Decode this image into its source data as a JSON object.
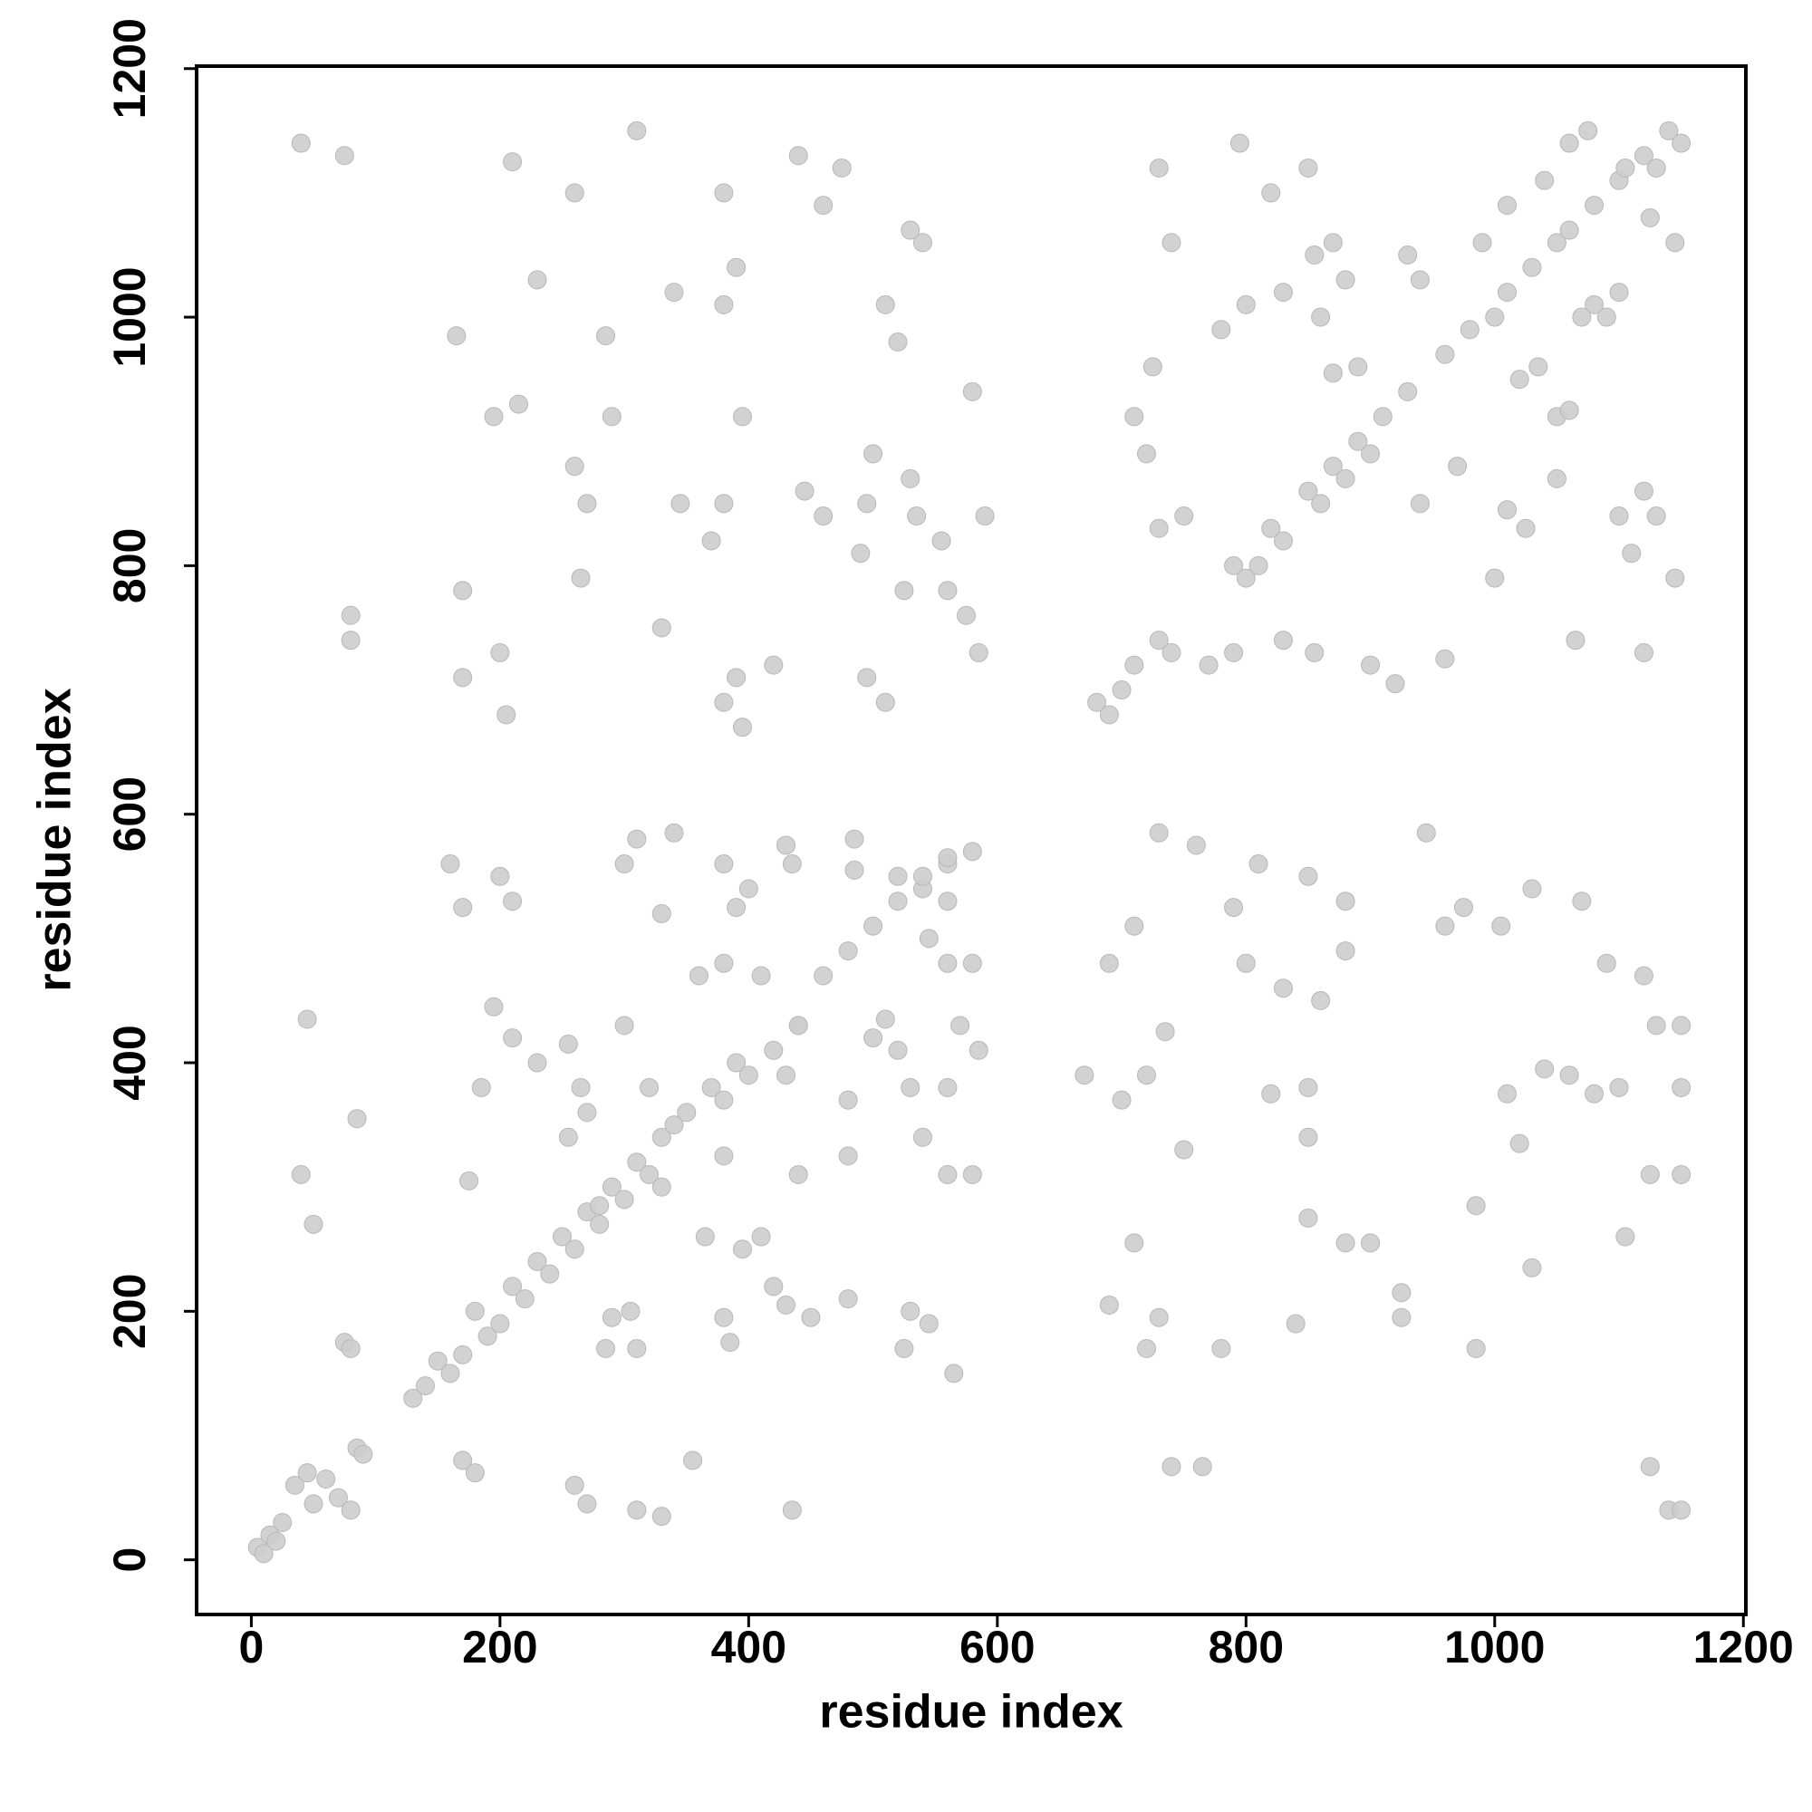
{
  "chart_data": {
    "type": "scatter",
    "xlabel": "residue index",
    "ylabel": "residue index",
    "color": "#cdcdcd",
    "xlim": [
      -44,
      1202
    ],
    "ylim": [
      -44,
      1202
    ],
    "xticks": [
      0,
      200,
      400,
      600,
      800,
      1000,
      1200
    ],
    "yticks": [
      0,
      200,
      400,
      600,
      800,
      1000,
      1200
    ],
    "grid": false,
    "x": [
      5,
      10,
      15,
      20,
      25,
      35,
      45,
      50,
      60,
      70,
      80,
      85,
      90,
      130,
      140,
      150,
      160,
      170,
      180,
      190,
      200,
      210,
      220,
      230,
      240,
      250,
      260,
      270,
      280,
      290,
      300,
      310,
      320,
      330,
      350,
      370,
      380,
      390,
      400,
      420,
      440,
      460,
      480,
      500,
      520,
      540,
      560,
      680,
      690,
      700,
      710,
      730,
      740,
      790,
      800,
      810,
      820,
      830,
      850,
      860,
      870,
      880,
      890,
      900,
      910,
      930,
      960,
      980,
      1000,
      1010,
      1030,
      1050,
      1060,
      1080,
      1100,
      1120,
      1130,
      1140,
      1150,
      40,
      75,
      310,
      440,
      380,
      390,
      340,
      260,
      210,
      230,
      475,
      170,
      170,
      200,
      205,
      195,
      215,
      260,
      270,
      265,
      345,
      370,
      380,
      390,
      380,
      395,
      395,
      445,
      460,
      490,
      495,
      530,
      535,
      555,
      560,
      575,
      585,
      580,
      520,
      510,
      540,
      530,
      460,
      500,
      380,
      80,
      80,
      420,
      495,
      510,
      330,
      290,
      165,
      285,
      525,
      590,
      795,
      820,
      850,
      1075,
      940,
      930,
      1010,
      1080,
      1100,
      990,
      770,
      790,
      830,
      855,
      870,
      890,
      860,
      830,
      855,
      780,
      800,
      730,
      740,
      730,
      750,
      725,
      710,
      720,
      900,
      920,
      960,
      1025,
      1010,
      1035,
      1050,
      1060,
      1050,
      1100,
      1110,
      1120,
      1130,
      1145,
      1065,
      1120,
      940,
      970,
      1000,
      1020,
      1070,
      1090,
      1105,
      1145,
      1125,
      1060,
      880,
      870,
      1040,
      730,
      760,
      790,
      810,
      850,
      880,
      945,
      975,
      1030,
      1070,
      1090,
      1120,
      1130,
      1150,
      1040,
      1060,
      1080,
      1100,
      1010,
      1020,
      880,
      900,
      925,
      925,
      850,
      820,
      850,
      850,
      700,
      670,
      720,
      735,
      690,
      720,
      730,
      780,
      740,
      765,
      1125,
      1140,
      1150,
      1150,
      1125,
      1150,
      960,
      1005,
      1105,
      985,
      985,
      1030,
      840,
      750,
      880,
      710,
      800,
      830,
      860,
      690,
      710,
      40,
      45,
      50,
      85,
      75,
      80,
      170,
      180,
      175,
      185,
      200,
      210,
      195,
      210,
      230,
      160,
      170,
      300,
      310,
      340,
      330,
      380,
      390,
      400,
      435,
      430,
      485,
      485,
      520,
      540,
      560,
      580,
      560,
      545,
      560,
      580,
      570,
      585,
      560,
      530,
      540,
      560,
      580,
      565,
      545,
      530,
      525,
      440,
      430,
      440,
      410,
      360,
      380,
      300,
      310,
      305,
      290,
      285,
      260,
      270,
      310,
      330,
      355,
      435,
      385,
      380,
      395,
      420,
      430,
      450,
      480,
      480,
      480,
      500,
      510,
      520,
      410,
      365,
      380,
      340,
      330,
      320,
      255,
      265,
      270,
      255,
      280
    ],
    "values": [
      10,
      5,
      20,
      15,
      30,
      60,
      70,
      45,
      65,
      50,
      40,
      90,
      85,
      130,
      140,
      160,
      150,
      165,
      200,
      180,
      190,
      220,
      210,
      240,
      230,
      260,
      250,
      280,
      270,
      300,
      290,
      320,
      310,
      340,
      360,
      380,
      370,
      400,
      390,
      410,
      430,
      470,
      490,
      510,
      530,
      540,
      560,
      690,
      680,
      700,
      720,
      740,
      730,
      800,
      790,
      800,
      830,
      820,
      860,
      850,
      880,
      870,
      900,
      890,
      920,
      940,
      970,
      990,
      1000,
      1020,
      1040,
      1060,
      1070,
      1090,
      1110,
      1130,
      1120,
      1150,
      1140,
      1140,
      1130,
      1150,
      1130,
      1100,
      1040,
      1020,
      1100,
      1125,
      1030,
      1120,
      780,
      710,
      730,
      680,
      920,
      930,
      880,
      850,
      790,
      850,
      820,
      850,
      710,
      690,
      670,
      920,
      860,
      840,
      810,
      850,
      870,
      840,
      820,
      780,
      760,
      730,
      940,
      980,
      1010,
      1060,
      1070,
      1090,
      890,
      1010,
      760,
      740,
      720,
      710,
      690,
      750,
      920,
      985,
      985,
      780,
      840,
      1140,
      1100,
      1120,
      1150,
      1030,
      1050,
      1090,
      1010,
      1020,
      1060,
      720,
      730,
      740,
      730,
      955,
      960,
      1000,
      1020,
      1050,
      990,
      1010,
      1120,
      1060,
      830,
      840,
      960,
      920,
      890,
      720,
      705,
      725,
      830,
      845,
      960,
      920,
      925,
      870,
      840,
      810,
      860,
      840,
      790,
      740,
      730,
      850,
      880,
      790,
      950,
      1000,
      1000,
      1120,
      1060,
      1080,
      1140,
      1030,
      1060,
      1110,
      585,
      575,
      525,
      560,
      550,
      530,
      585,
      525,
      540,
      530,
      480,
      470,
      430,
      430,
      395,
      390,
      375,
      380,
      375,
      335,
      255,
      255,
      215,
      195,
      275,
      375,
      380,
      340,
      370,
      390,
      390,
      425,
      205,
      170,
      195,
      170,
      75,
      75,
      75,
      40,
      40,
      310,
      310,
      380,
      510,
      510,
      260,
      285,
      170,
      235,
      190,
      330,
      490,
      255,
      480,
      460,
      450,
      480,
      510,
      310,
      435,
      270,
      355,
      175,
      170,
      80,
      70,
      305,
      380,
      550,
      530,
      445,
      420,
      400,
      560,
      525,
      560,
      580,
      585,
      520,
      560,
      525,
      540,
      560,
      575,
      580,
      555,
      550,
      550,
      565,
      570,
      530,
      500,
      480,
      480,
      430,
      410,
      380,
      380,
      340,
      310,
      310,
      150,
      190,
      200,
      170,
      310,
      390,
      430,
      470,
      470,
      480,
      430,
      170,
      200,
      195,
      170,
      60,
      45,
      40,
      35,
      80,
      40,
      175,
      195,
      250,
      220,
      205,
      195,
      210,
      325,
      370,
      420,
      435,
      410,
      260,
      260,
      325,
      350,
      300,
      380,
      415,
      380,
      360,
      340,
      285
    ]
  }
}
